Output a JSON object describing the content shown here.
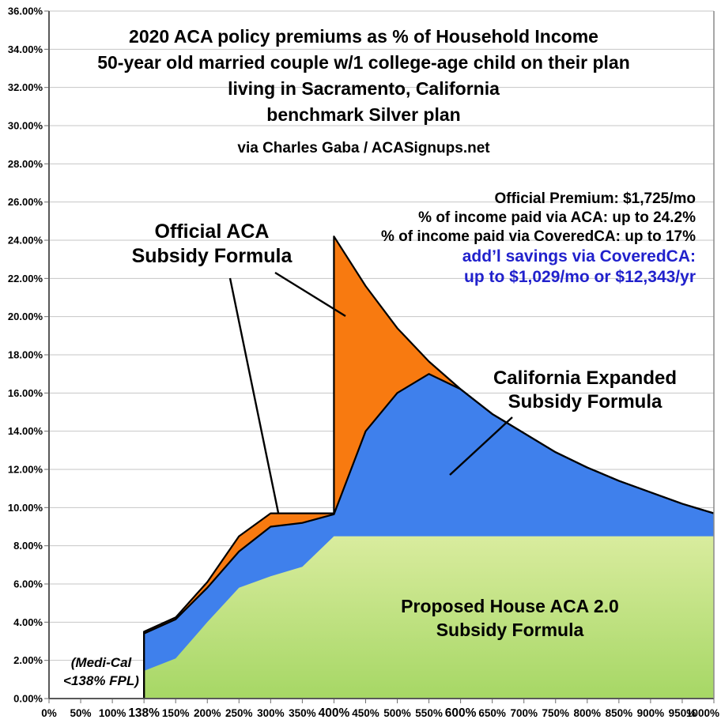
{
  "chart_data": {
    "type": "area",
    "title_lines": [
      "2020 ACA policy premiums as % of Household Income",
      "50-year old married couple w/1 college-age child on their plan",
      "living in Sacramento, California",
      "benchmark Silver plan"
    ],
    "credit": "via Charles Gaba / ACASignups.net",
    "y_axis": {
      "min": 0,
      "max": 36,
      "step": 2,
      "tick_labels": [
        "36.00%",
        "34.00%",
        "32.00%",
        "30.00%",
        "28.00%",
        "26.00%",
        "24.00%",
        "22.00%",
        "20.00%",
        "18.00%",
        "16.00%",
        "14.00%",
        "12.00%",
        "10.00%",
        "8.00%",
        "6.00%",
        "4.00%",
        "2.00%",
        "0.00%"
      ]
    },
    "x_axis": {
      "categories": [
        "0%",
        "50%",
        "100%",
        "138%",
        "150%",
        "200%",
        "250%",
        "300%",
        "350%",
        "400%",
        "450%",
        "500%",
        "550%",
        "600%",
        "650%",
        "700%",
        "750%",
        "800%",
        "850%",
        "900%",
        "950%",
        "1000%"
      ],
      "emphasized": [
        "138%",
        "400%",
        "600%"
      ]
    },
    "series": [
      {
        "name": "Official ACA Subsidy Formula",
        "fill": "#F87A10",
        "outline": "#000000",
        "x": [
          "138%",
          "150%",
          "200%",
          "250%",
          "300%",
          "350%",
          "400%",
          "400%",
          "450%",
          "500%",
          "550%",
          "600%",
          "650%",
          "700%",
          "750%",
          "800%",
          "850%",
          "900%",
          "950%",
          "1000%"
        ],
        "values": [
          3.5,
          4.25,
          6.1,
          8.5,
          9.7,
          9.7,
          9.7,
          24.2,
          21.6,
          19.4,
          17.65,
          16.2,
          14.9,
          13.9,
          12.9,
          12.1,
          11.4,
          10.8,
          10.2,
          9.7
        ]
      },
      {
        "name": "California Expanded Subsidy Formula",
        "fill": "#3F80EC",
        "outline": "#000000",
        "x": [
          "138%",
          "150%",
          "200%",
          "250%",
          "300%",
          "350%",
          "400%",
          "450%",
          "500%",
          "550%",
          "600%",
          "650%",
          "700%",
          "750%",
          "800%",
          "850%",
          "900%",
          "950%",
          "1000%"
        ],
        "values": [
          3.4,
          4.15,
          5.8,
          7.7,
          9.0,
          9.2,
          9.65,
          14.0,
          16.0,
          17.0,
          16.2,
          14.9,
          13.9,
          12.9,
          12.1,
          11.4,
          10.8,
          10.2,
          9.7
        ]
      },
      {
        "name": "Proposed House ACA 2.0 Subsidy Formula",
        "fill_top": "#D9EC9E",
        "fill_bottom": "#A6D765",
        "x": [
          "138%",
          "150%",
          "200%",
          "250%",
          "300%",
          "350%",
          "400%",
          "450%",
          "500%",
          "550%",
          "600%",
          "650%",
          "700%",
          "750%",
          "800%",
          "850%",
          "900%",
          "950%",
          "1000%"
        ],
        "values": [
          1.45,
          2.1,
          4.0,
          5.8,
          6.4,
          6.9,
          8.5,
          8.5,
          8.5,
          8.5,
          8.5,
          8.5,
          8.5,
          8.5,
          8.5,
          8.5,
          8.5,
          8.5,
          8.5
        ]
      }
    ],
    "grid": true,
    "legend": "none (areas labeled with callout text)"
  },
  "stats": {
    "line1": "Official Premium: $1,725/mo",
    "line2": "% of income paid via ACA: up to 24.2%",
    "line3": "% of income paid via CoveredCA: up to 17%",
    "line4": "add’l savings via CoveredCA:",
    "line5": "up to $1,029/mo or $12,343/yr",
    "accent_color": "#2121CC"
  },
  "labels": {
    "official": {
      "line1": "Official ACA",
      "line2": "Subsidy Formula"
    },
    "california": {
      "line1": "California Expanded",
      "line2": "Subsidy Formula"
    },
    "house": {
      "line1": "Proposed House ACA 2.0",
      "line2": "Subsidy Formula"
    },
    "medicaid": {
      "line1": "(Medi-Cal",
      "line2": "<138% FPL)"
    }
  },
  "colors": {
    "gridline": "#C6C6C6",
    "axis": "#6E6E6E",
    "leader_line": "#000000",
    "background": "#FFFFFF"
  }
}
